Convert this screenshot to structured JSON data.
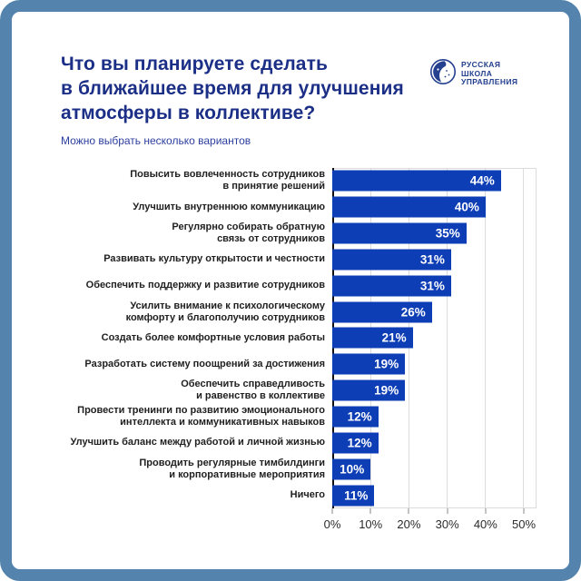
{
  "page": {
    "background": "#FFFFFF",
    "frame_color": "#5484AD",
    "card_background": "#FFFFFF"
  },
  "header": {
    "title_lines": [
      "Что вы планируете сделать",
      "в ближайшее время для улучшения",
      "атмосферы в коллективе?"
    ],
    "title_color": "#1C2F87",
    "subtitle": "Можно выбрать несколько вариантов",
    "subtitle_color": "#2B3F9E"
  },
  "logo": {
    "icon": "face-in-circle-icon",
    "color": "#24408F",
    "text_lines": [
      "РУССКАЯ",
      "ШКОЛА",
      "УПРАВЛЕНИЯ"
    ]
  },
  "chart_data": {
    "type": "bar",
    "orientation": "horizontal",
    "title": "Что вы планируете сделать в ближайшее время для улучшения атмосферы в коллективе?",
    "subtitle": "Можно выбрать несколько вариантов",
    "categories": [
      "Повысить вовлеченность сотрудников в принятие решений",
      "Улучшить внутреннюю коммуникацию",
      "Регулярно собирать обратную связь от сотрудников",
      "Развивать культуру открытости и честности",
      "Обеспечить поддержку и развитие сотрудников",
      "Усилить внимание к психологическому комфорту и благополучию сотрудников",
      "Создать более комфортные условия работы",
      "Разработать систему поощрений за достижения",
      "Обеспечить справедливость и равенство в коллективе",
      "Провести тренинги по развитию эмоционального интеллекта и коммуникативных навыков",
      "Улучшить баланс между работой и личной жизнью",
      "Проводить регулярные тимбилдинги и корпоративные мероприятия",
      "Ничего"
    ],
    "categories_lines": [
      [
        "Повысить вовлеченность сотрудников",
        "в принятие решений"
      ],
      [
        "Улучшить внутреннюю коммуникацию"
      ],
      [
        "Регулярно собирать обратную",
        "связь от сотрудников"
      ],
      [
        "Развивать культуру открытости и честности"
      ],
      [
        "Обеспечить поддержку и развитие сотрудников"
      ],
      [
        "Усилить внимание к психологическому",
        "комфорту и благополучию сотрудников"
      ],
      [
        "Создать более комфортные условия работы"
      ],
      [
        "Разработать систему поощрений за достижения"
      ],
      [
        "Обеспечить справедливость",
        "и равенство в коллективе"
      ],
      [
        "Провести тренинги по развитию эмоционального",
        "интеллекта и коммуникативных навыков"
      ],
      [
        "Улучшить баланс между работой и личной жизнью"
      ],
      [
        "Проводить регулярные тимбилдинги",
        "и корпоративные мероприятия"
      ],
      [
        "Ничего"
      ]
    ],
    "values": [
      44,
      40,
      35,
      31,
      31,
      26,
      21,
      19,
      19,
      12,
      12,
      10,
      11
    ],
    "value_labels": [
      "44%",
      "40%",
      "35%",
      "31%",
      "31%",
      "26%",
      "21%",
      "19%",
      "19%",
      "12%",
      "12%",
      "10%",
      "11%"
    ],
    "x_ticks": [
      {
        "value": 0,
        "label": "0%"
      },
      {
        "value": 10,
        "label": "10%"
      },
      {
        "value": 20,
        "label": "20%"
      },
      {
        "value": 30,
        "label": "30%"
      },
      {
        "value": 40,
        "label": "40%"
      },
      {
        "value": 50,
        "label": "50%"
      }
    ],
    "xlim": [
      0,
      53.3
    ],
    "grid": true,
    "legend": false,
    "bar_color": "#0D3EB6",
    "value_label_color": "#FFFFFF",
    "category_label_color": "#1F1F1F",
    "tick_label_color": "#2B2B2B",
    "gridline_color": "#DCDCDC",
    "axis_line_color": "#111111"
  }
}
